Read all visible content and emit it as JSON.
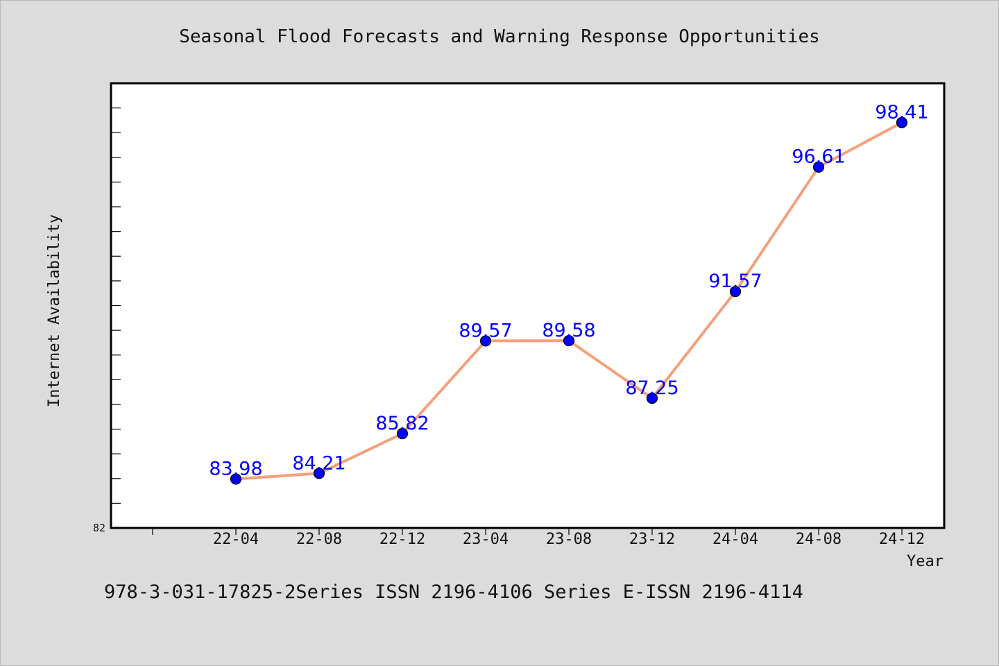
{
  "chart_data": {
    "type": "line",
    "title": "Seasonal Flood Forecasts and Warning Response Opportunities",
    "xlabel": "Year",
    "ylabel": "Internet Availability",
    "categories": [
      "22-04",
      "22-08",
      "22-12",
      "23-04",
      "23-08",
      "23-12",
      "24-04",
      "24-08",
      "24-12"
    ],
    "series": [
      {
        "values": [
          83.98,
          84.21,
          85.82,
          89.57,
          89.58,
          87.25,
          91.57,
          96.61,
          98.41
        ],
        "labels": [
          "83.98",
          "84.21",
          "85.82",
          "89.57",
          "89.58",
          "87.25",
          "91.57",
          "96.61",
          "98.41"
        ],
        "line_color": "#f4a07c",
        "marker_color": "#0000ff"
      }
    ],
    "ylim": [
      82,
      100
    ],
    "y_tick_labels": [
      "82"
    ],
    "grid": false,
    "legend": "none"
  },
  "footer": {
    "text": "978-3-031-17825-2Series ISSN 2196-4106 Series E-ISSN 2196-4114"
  }
}
